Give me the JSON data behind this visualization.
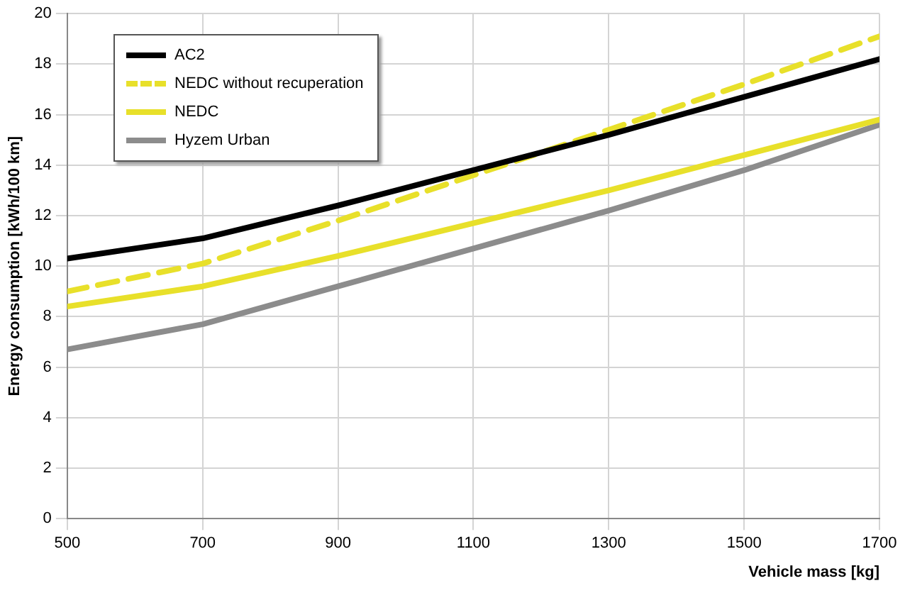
{
  "chart_data": {
    "type": "line",
    "xlabel": "Vehicle mass [kg]",
    "ylabel": "Energy consumption [kWh/100 km]",
    "x": [
      500,
      700,
      900,
      1100,
      1300,
      1500,
      1700
    ],
    "series": [
      {
        "name": "AC2",
        "color": "#000000",
        "values": [
          10.3,
          11.1,
          12.4,
          13.8,
          15.2,
          16.7,
          18.2
        ]
      },
      {
        "name": "NEDC without recuperation",
        "color": "#e8e02a",
        "values": [
          9.0,
          10.1,
          11.8,
          13.6,
          15.4,
          17.2,
          19.1
        ],
        "line_style": "dashed"
      },
      {
        "name": "NEDC",
        "color": "#e8e02a",
        "values": [
          8.4,
          9.2,
          10.4,
          11.7,
          13.0,
          14.4,
          15.8
        ]
      },
      {
        "name": "Hyzem Urban",
        "color": "#8c8c8c",
        "values": [
          6.7,
          7.7,
          9.2,
          10.7,
          12.2,
          13.8,
          15.6
        ]
      }
    ],
    "xlim": [
      500,
      1700
    ],
    "xticks": [
      500,
      700,
      900,
      1100,
      1300,
      1500,
      1700
    ],
    "ylim": [
      0,
      20
    ],
    "yticks": [
      0,
      2,
      4,
      6,
      8,
      10,
      12,
      14,
      16,
      18,
      20
    ],
    "grid": true,
    "legend": "top left",
    "marker": "none",
    "line_style": "solid"
  }
}
